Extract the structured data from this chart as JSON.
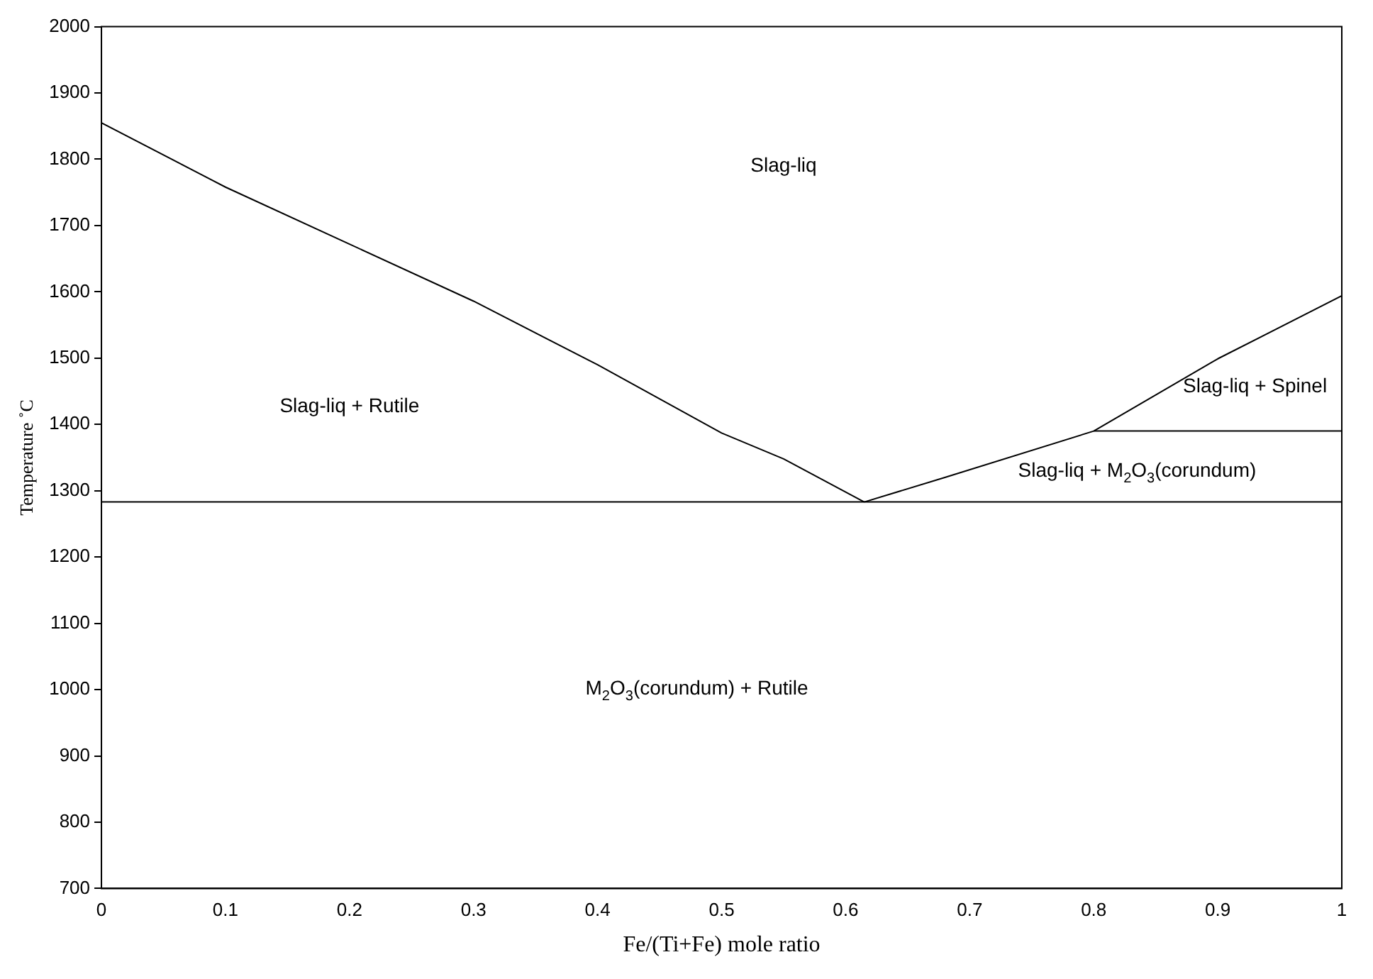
{
  "chart_data": {
    "type": "line",
    "xlabel": "Fe/(Ti+Fe) mole ratio",
    "ylabel": "Temperature ˚C",
    "series": [
      {
        "color": "#000000",
        "x": [
          0,
          0.1,
          0.2,
          0.3,
          0.4,
          0.5,
          0.55,
          0.615
        ],
        "values": [
          1855,
          1758,
          1672,
          1586,
          1490,
          1387,
          1348,
          1283
        ]
      },
      {
        "color": "#000000",
        "x": [
          0.615,
          0.68,
          0.8,
          0.9,
          1.0
        ],
        "values": [
          1283,
          1320,
          1390,
          1499,
          1594
        ]
      },
      {
        "color": "#000000",
        "x": [
          0,
          1
        ],
        "values": [
          1283,
          1283
        ]
      },
      {
        "color": "#000000",
        "x": [
          0.8,
          1
        ],
        "values": [
          1390,
          1390
        ]
      }
    ],
    "xlim": [
      0,
      1
    ],
    "xticks": [
      0,
      0.1,
      0.2,
      0.3,
      0.4,
      0.5,
      0.6,
      0.7,
      0.8,
      0.9,
      1
    ],
    "ylim": [
      700,
      2000
    ],
    "yticks": [
      700,
      800,
      900,
      1000,
      1100,
      1200,
      1300,
      1400,
      1500,
      1600,
      1700,
      1800,
      1900,
      2000
    ],
    "grid": false,
    "legend": false,
    "marker": "none",
    "line_style": "solid",
    "annotations": [
      "Slag-liq",
      "Slag-liq + Rutile",
      "Slag-liq + Spinel",
      "Slag-liq + M$_{2}$O$_{3}$(corundum)",
      "M$_{2}$O$_{3}$(corundum) + Rutile"
    ]
  }
}
